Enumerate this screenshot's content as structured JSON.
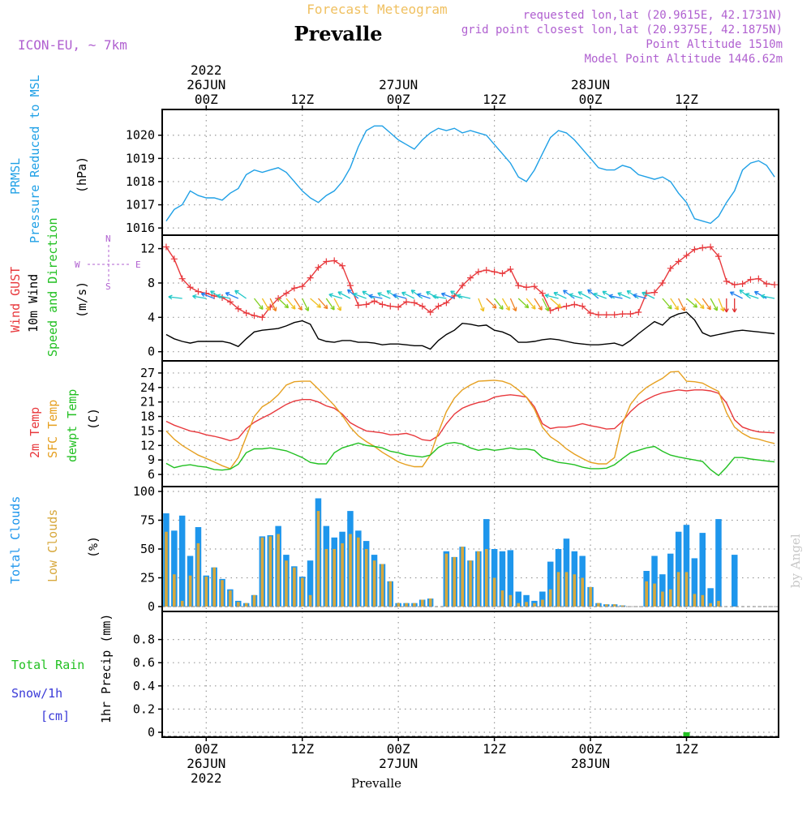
{
  "header": {
    "title": "Prevalle",
    "subtitle": "Forecast Meteogram",
    "model": "ICON-EU, ~ 7km",
    "requested": "requested lon,lat (20.9615E, 42.1731N)",
    "gridpoint": "grid point closest lon,lat (20.9375E, 42.1875N)",
    "point_altitude": "Point Altitude 1510m",
    "model_altitude": "Model Point Altitude 1446.62m",
    "footer_location": "Prevalle",
    "watermark": "by Angel"
  },
  "colors": {
    "pressure": "#1fa0e6",
    "gust": "#e8383c",
    "wind": "#000000",
    "temp": "#e8383c",
    "sfc_temp": "#e6a020",
    "dewpoint": "#22c022",
    "total_clouds": "#1e96ec",
    "low_clouds": "#d7a83c",
    "rain": "#22c022",
    "snow": "#3a3ad8",
    "label_purple": "#b060d0",
    "subtitle": "#f0c060"
  },
  "time_axis": {
    "top": [
      {
        "x": 0,
        "lines": [
          "2022",
          "26JUN",
          "00Z"
        ]
      },
      {
        "x": 12,
        "lines": [
          "12Z"
        ]
      },
      {
        "x": 24,
        "lines": [
          "27JUN",
          "00Z"
        ]
      },
      {
        "x": 36,
        "lines": [
          "12Z"
        ]
      },
      {
        "x": 48,
        "lines": [
          "28JUN",
          "00Z"
        ]
      },
      {
        "x": 60,
        "lines": [
          "12Z"
        ]
      }
    ],
    "bottom": [
      {
        "x": 0,
        "lines": [
          "00Z",
          "26JUN",
          "2022"
        ]
      },
      {
        "x": 12,
        "lines": [
          "12Z"
        ]
      },
      {
        "x": 24,
        "lines": [
          "00Z",
          "27JUN"
        ]
      },
      {
        "x": 36,
        "lines": [
          "12Z"
        ]
      },
      {
        "x": 48,
        "lines": [
          "00Z",
          "28JUN"
        ]
      },
      {
        "x": 60,
        "lines": [
          "12Z"
        ]
      }
    ]
  },
  "panel_labels": {
    "pressure": {
      "lines": [
        "PRMSL",
        "Pressure Reduced to MSL"
      ],
      "unit": "(hPa)"
    },
    "wind": {
      "lines": [
        "Wind GUST",
        "10m Wind",
        "Speed and Direction"
      ],
      "unit": "(m/s)",
      "compass": [
        "N",
        "W",
        "E",
        "S"
      ]
    },
    "temp": {
      "lines": [
        "2m Temp",
        "SFC Temp",
        "dewpt Temp"
      ],
      "unit": "(C)"
    },
    "clouds": {
      "lines": [
        "Total Clouds",
        "Low Clouds"
      ],
      "unit": "(%)"
    },
    "precip": {
      "lines": [
        "Total Rain",
        "Snow/1h",
        "[cm]"
      ],
      "unit": "1hr Precip (mm)"
    }
  },
  "chart_data": [
    {
      "type": "line",
      "title": "PRMSL",
      "ylabel": "(hPa)",
      "x_unit": "hours from 26JUN 00Z",
      "ylim": [
        1015.9,
        1020.9
      ],
      "yticks": [
        1016,
        1017,
        1018,
        1019,
        1020
      ],
      "grid": true,
      "x": [
        -5,
        -4,
        -3,
        -2,
        -1,
        0,
        1,
        2,
        3,
        4,
        5,
        6,
        7,
        8,
        9,
        10,
        11,
        12,
        13,
        14,
        15,
        16,
        17,
        18,
        19,
        20,
        21,
        22,
        23,
        24,
        25,
        26,
        27,
        28,
        29,
        30,
        31,
        32,
        33,
        34,
        35,
        36,
        37,
        38,
        39,
        40,
        41,
        42,
        43,
        44,
        45,
        46,
        47,
        48,
        49,
        50,
        51,
        52,
        53,
        54,
        55,
        56,
        57,
        58,
        59,
        60,
        61,
        62,
        63,
        64,
        65,
        66,
        67,
        68,
        69,
        70,
        71
      ],
      "series": [
        {
          "name": "PRMSL",
          "values": [
            1016.3,
            1016.8,
            1017.0,
            1017.6,
            1017.4,
            1017.3,
            1017.3,
            1017.2,
            1017.5,
            1017.7,
            1018.3,
            1018.5,
            1018.4,
            1018.5,
            1018.6,
            1018.4,
            1018.0,
            1017.6,
            1017.3,
            1017.1,
            1017.4,
            1017.6,
            1018.0,
            1018.6,
            1019.5,
            1020.2,
            1020.4,
            1020.4,
            1020.1,
            1019.8,
            1019.6,
            1019.4,
            1019.8,
            1020.1,
            1020.3,
            1020.2,
            1020.3,
            1020.1,
            1020.2,
            1020.1,
            1020.0,
            1019.6,
            1019.2,
            1018.8,
            1018.2,
            1018.0,
            1018.5,
            1019.2,
            1019.9,
            1020.2,
            1020.1,
            1019.8,
            1019.4,
            1019.0,
            1018.6,
            1018.5,
            1018.5,
            1018.7,
            1018.6,
            1018.3,
            1018.2,
            1018.1,
            1018.2,
            1018.0,
            1017.5,
            1017.1,
            1016.4,
            1016.3,
            1016.2,
            1016.5,
            1017.1,
            1017.6,
            1018.5,
            1018.8,
            1018.9,
            1018.7,
            1018.2
          ]
        }
      ]
    },
    {
      "type": "line",
      "title": "Wind GUST / 10m Wind",
      "ylabel": "(m/s)",
      "x_unit": "hours from 26JUN 00Z",
      "ylim": [
        -0.5,
        13.0
      ],
      "yticks": [
        0,
        4,
        8,
        12
      ],
      "grid": true,
      "x": [
        -5,
        -4,
        -3,
        -2,
        -1,
        0,
        1,
        2,
        3,
        4,
        5,
        6,
        7,
        8,
        9,
        10,
        11,
        12,
        13,
        14,
        15,
        16,
        17,
        18,
        19,
        20,
        21,
        22,
        23,
        24,
        25,
        26,
        27,
        28,
        29,
        30,
        31,
        32,
        33,
        34,
        35,
        36,
        37,
        38,
        39,
        40,
        41,
        42,
        43,
        44,
        45,
        46,
        47,
        48,
        49,
        50,
        51,
        52,
        53,
        54,
        55,
        56,
        57,
        58,
        59,
        60,
        61,
        62,
        63,
        64,
        65,
        66,
        67,
        68,
        69,
        70,
        71
      ],
      "series": [
        {
          "name": "Wind GUST",
          "values": [
            12.2,
            10.8,
            8.5,
            7.5,
            7.0,
            6.8,
            6.5,
            6.3,
            5.8,
            5.0,
            4.5,
            4.2,
            4.0,
            5.2,
            6.2,
            6.8,
            7.4,
            7.6,
            8.6,
            9.8,
            10.5,
            10.6,
            10.0,
            7.7,
            5.4,
            5.5,
            5.9,
            5.5,
            5.3,
            5.2,
            5.8,
            5.7,
            5.3,
            4.6,
            5.3,
            5.7,
            6.5,
            7.7,
            8.6,
            9.3,
            9.5,
            9.3,
            9.1,
            9.6,
            7.7,
            7.5,
            7.6,
            6.8,
            4.8,
            5.1,
            5.3,
            5.5,
            5.3,
            4.5,
            4.3,
            4.3,
            4.3,
            4.4,
            4.4,
            4.6,
            6.8,
            6.9,
            8.0,
            9.7,
            10.5,
            11.2,
            11.9,
            12.1,
            12.2,
            11.1,
            8.2,
            7.8,
            7.9,
            8.4,
            8.5,
            7.9,
            7.8
          ]
        },
        {
          "name": "10m Wind",
          "values": [
            2.0,
            1.5,
            1.2,
            1.0,
            1.2,
            1.2,
            1.2,
            1.2,
            1.0,
            0.6,
            1.5,
            2.3,
            2.5,
            2.6,
            2.7,
            3.0,
            3.4,
            3.6,
            3.2,
            1.5,
            1.2,
            1.1,
            1.3,
            1.3,
            1.1,
            1.1,
            1.0,
            0.8,
            0.9,
            0.9,
            0.8,
            0.7,
            0.7,
            0.3,
            1.3,
            2.0,
            2.5,
            3.3,
            3.2,
            3.0,
            3.1,
            2.5,
            2.3,
            1.9,
            1.1,
            1.1,
            1.2,
            1.4,
            1.5,
            1.4,
            1.2,
            1.0,
            0.9,
            0.8,
            0.8,
            0.9,
            1.0,
            0.7,
            1.3,
            2.1,
            2.8,
            3.5,
            3.1,
            4.0,
            4.4,
            4.6,
            3.7,
            2.2,
            1.8,
            2.0,
            2.2,
            2.4,
            2.5,
            2.4,
            2.3,
            2.2,
            2.1
          ]
        }
      ]
    },
    {
      "type": "line",
      "title": "2m Temp / SFC Temp / dewpt Temp",
      "ylabel": "(C)",
      "x_unit": "hours from 26JUN 00Z",
      "ylim": [
        4.5,
        28.5
      ],
      "yticks": [
        6,
        9,
        12,
        15,
        18,
        21,
        24,
        27
      ],
      "grid": true,
      "x": [
        -5,
        -4,
        -3,
        -2,
        -1,
        0,
        1,
        2,
        3,
        4,
        5,
        6,
        7,
        8,
        9,
        10,
        11,
        12,
        13,
        14,
        15,
        16,
        17,
        18,
        19,
        20,
        21,
        22,
        23,
        24,
        25,
        26,
        27,
        28,
        29,
        30,
        31,
        32,
        33,
        34,
        35,
        36,
        37,
        38,
        39,
        40,
        41,
        42,
        43,
        44,
        45,
        46,
        47,
        48,
        49,
        50,
        51,
        52,
        53,
        54,
        55,
        56,
        57,
        58,
        59,
        60,
        61,
        62,
        63,
        64,
        65,
        66,
        67,
        68,
        69,
        70,
        71
      ],
      "series": [
        {
          "name": "2m Temp",
          "values": [
            17.0,
            16.2,
            15.6,
            15.0,
            14.7,
            14.2,
            13.9,
            13.5,
            13.0,
            13.5,
            15.5,
            16.8,
            17.7,
            18.5,
            19.5,
            20.5,
            21.2,
            21.5,
            21.5,
            21.0,
            20.2,
            19.7,
            18.5,
            16.7,
            15.8,
            15.0,
            14.8,
            14.6,
            14.2,
            14.3,
            14.5,
            14.0,
            13.2,
            13.0,
            14.0,
            16.5,
            18.5,
            19.7,
            20.4,
            20.9,
            21.2,
            22.0,
            22.3,
            22.5,
            22.3,
            22.0,
            20.0,
            16.5,
            15.5,
            15.8,
            15.8,
            16.1,
            16.5,
            16.1,
            15.8,
            15.4,
            15.5,
            17.0,
            19.0,
            20.5,
            21.5,
            22.3,
            22.9,
            23.2,
            23.5,
            23.3,
            23.5,
            23.5,
            23.3,
            22.8,
            20.8,
            17.3,
            15.8,
            15.2,
            14.8,
            14.7,
            14.6
          ]
        },
        {
          "name": "SFC Temp",
          "values": [
            15.0,
            13.3,
            12.0,
            11.0,
            10.0,
            9.3,
            8.6,
            7.8,
            7.2,
            9.5,
            13.8,
            18.0,
            20.0,
            21.0,
            22.5,
            24.5,
            25.2,
            25.3,
            25.3,
            23.7,
            22.0,
            20.3,
            18.2,
            15.8,
            14.0,
            12.8,
            11.8,
            10.6,
            9.6,
            8.6,
            8.0,
            7.6,
            7.6,
            10.0,
            14.7,
            19.0,
            21.8,
            23.5,
            24.5,
            25.3,
            25.4,
            25.5,
            25.3,
            24.7,
            23.5,
            22.0,
            19.5,
            15.8,
            13.8,
            12.7,
            11.3,
            10.2,
            9.3,
            8.5,
            8.2,
            8.2,
            9.5,
            16.5,
            20.5,
            22.6,
            24.0,
            25.0,
            25.9,
            27.2,
            27.3,
            25.3,
            25.2,
            24.9,
            24.0,
            23.2,
            18.8,
            15.8,
            14.5,
            13.6,
            13.3,
            12.8,
            12.4
          ]
        },
        {
          "name": "dewpt Temp",
          "values": [
            8.3,
            7.4,
            7.8,
            8.0,
            7.7,
            7.5,
            7.0,
            6.9,
            7.1,
            8.1,
            10.5,
            11.3,
            11.3,
            11.5,
            11.2,
            10.9,
            10.2,
            9.5,
            8.5,
            8.2,
            8.2,
            10.5,
            11.5,
            12.0,
            12.5,
            12.0,
            11.8,
            11.5,
            10.8,
            10.5,
            10.0,
            9.8,
            9.6,
            10.0,
            11.6,
            12.4,
            12.6,
            12.3,
            11.5,
            11.0,
            11.3,
            11.0,
            11.2,
            11.5,
            11.2,
            11.3,
            11.0,
            9.5,
            9.0,
            8.5,
            8.3,
            8.0,
            7.5,
            7.2,
            7.2,
            7.3,
            8.0,
            9.3,
            10.5,
            11.0,
            11.5,
            11.8,
            10.8,
            10.0,
            9.6,
            9.3,
            9.0,
            8.7,
            7.0,
            5.8,
            7.5,
            9.5,
            9.5,
            9.2,
            9.0,
            8.8,
            8.6
          ]
        }
      ]
    },
    {
      "type": "bar",
      "title": "Total Clouds / Low Clouds",
      "ylabel": "(%)",
      "x_unit": "hours from 26JUN 00Z",
      "ylim": [
        0,
        100
      ],
      "yticks": [
        0,
        25,
        50,
        75,
        100
      ],
      "grid": true,
      "x": [
        -5,
        -4,
        -3,
        -2,
        -1,
        0,
        1,
        2,
        3,
        4,
        5,
        6,
        7,
        8,
        9,
        10,
        11,
        12,
        13,
        14,
        15,
        16,
        17,
        18,
        19,
        20,
        21,
        22,
        23,
        24,
        25,
        26,
        27,
        28,
        29,
        30,
        31,
        32,
        33,
        34,
        35,
        36,
        37,
        38,
        39,
        40,
        41,
        42,
        43,
        44,
        45,
        46,
        47,
        48,
        49,
        50,
        51,
        52,
        53,
        54,
        55,
        56,
        57,
        58,
        59,
        60,
        61,
        62,
        63,
        64,
        65,
        66,
        67,
        68,
        69,
        70,
        71
      ],
      "series": [
        {
          "name": "Total Clouds",
          "values": [
            81,
            66,
            79,
            44,
            69,
            27,
            34,
            24,
            15,
            5,
            3,
            10,
            61,
            62,
            70,
            45,
            35,
            26,
            40,
            94,
            70,
            60,
            65,
            83,
            66,
            57,
            45,
            37,
            22,
            3,
            3,
            3,
            6,
            7,
            0,
            48,
            43,
            52,
            40,
            48,
            76,
            50,
            48,
            49,
            13,
            10,
            5,
            13,
            39,
            50,
            59,
            48,
            44,
            17,
            3,
            2,
            2,
            1,
            0,
            0,
            31,
            44,
            28,
            46,
            65,
            71,
            42,
            64,
            16,
            76,
            0,
            45,
            0,
            0,
            0,
            0,
            0
          ]
        },
        {
          "name": "Low Clouds",
          "values": [
            65,
            28,
            5,
            27,
            55,
            26,
            34,
            23,
            14,
            4,
            3,
            10,
            60,
            61,
            63,
            40,
            34,
            25,
            10,
            83,
            50,
            50,
            55,
            63,
            60,
            50,
            40,
            37,
            22,
            3,
            3,
            3,
            6,
            7,
            0,
            46,
            43,
            52,
            40,
            48,
            50,
            25,
            14,
            10,
            3,
            4,
            3,
            6,
            15,
            30,
            30,
            28,
            25,
            17,
            3,
            2,
            2,
            1,
            0,
            0,
            22,
            20,
            13,
            15,
            30,
            30,
            11,
            10,
            3,
            5,
            0,
            0,
            0,
            0,
            0,
            0,
            0
          ]
        }
      ]
    },
    {
      "type": "bar",
      "title": "1hr Precip",
      "ylabel": "1hr Precip (mm)",
      "x_unit": "hours from 26JUN 00Z",
      "ylim": [
        0,
        1.0
      ],
      "yticks": [
        0,
        0.2,
        0.4,
        0.6,
        0.8
      ],
      "grid": true,
      "x": [
        60
      ],
      "series": [
        {
          "name": "Total Rain",
          "values": [
            0.02
          ]
        }
      ]
    }
  ]
}
